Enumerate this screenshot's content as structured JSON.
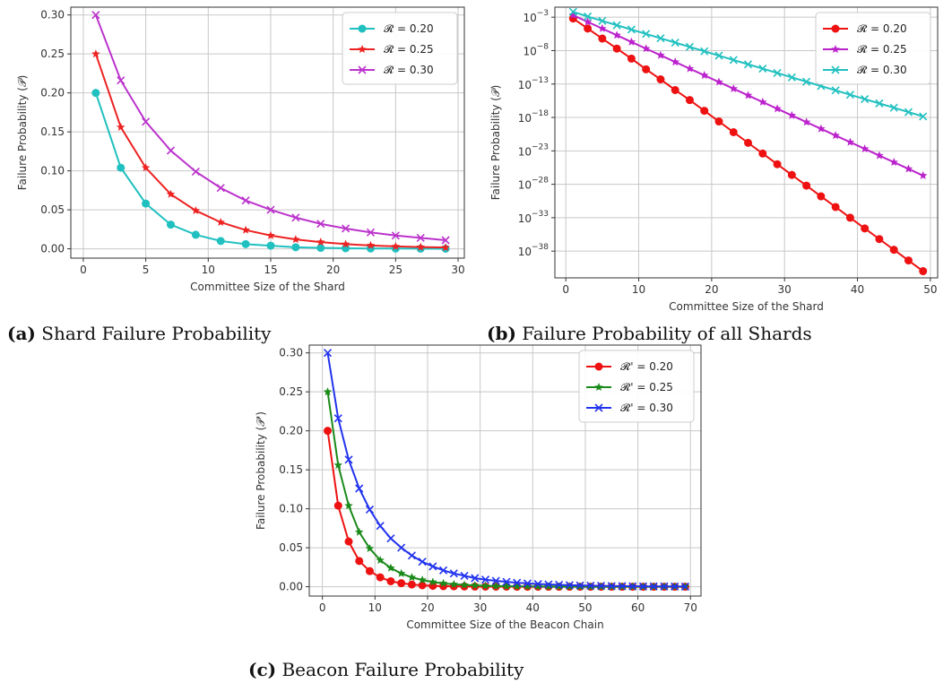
{
  "figures": [
    {
      "label": "(a)",
      "caption": "Shard Failure Probability"
    },
    {
      "label": "(b)",
      "caption": "Failure Probability of all Shards"
    },
    {
      "label": "(c)",
      "caption": "Beacon Failure Probability"
    }
  ],
  "chart_data": [
    {
      "type": "line",
      "title": "",
      "xlabel": "Committee Size of the Shard",
      "ylabel": "Failure Probability (𝒫)",
      "xlim": [
        -1,
        30.5
      ],
      "ylim": [
        -0.012,
        0.31
      ],
      "xticks": [
        0,
        5,
        10,
        15,
        20,
        25,
        30
      ],
      "yticks": [
        0.0,
        0.05,
        0.1,
        0.15,
        0.2,
        0.25,
        0.3
      ],
      "ytick_labels": [
        "0.00",
        "0.05",
        "0.10",
        "0.15",
        "0.20",
        "0.25",
        "0.30"
      ],
      "grid": true,
      "legend_position": "top-right",
      "x": [
        1,
        3,
        5,
        7,
        9,
        11,
        13,
        15,
        17,
        19,
        21,
        23,
        25,
        27,
        29
      ],
      "series": [
        {
          "name": "𝓡 = 0.20",
          "color": "#20c0c0",
          "marker": "circle",
          "values": [
            0.2,
            0.104,
            0.058,
            0.031,
            0.018,
            0.01,
            0.006,
            0.004,
            0.002,
            0.0012,
            0.0007,
            0.0004,
            0.0003,
            0.0002,
            0.0001
          ]
        },
        {
          "name": "𝓡 = 0.25",
          "color": "#ee2222",
          "marker": "star",
          "values": [
            0.25,
            0.156,
            0.104,
            0.07,
            0.049,
            0.034,
            0.024,
            0.017,
            0.012,
            0.0086,
            0.006,
            0.0043,
            0.0031,
            0.0022,
            0.0016
          ]
        },
        {
          "name": "𝓡 = 0.30",
          "color": "#bb33cc",
          "marker": "x",
          "values": [
            0.3,
            0.216,
            0.163,
            0.126,
            0.099,
            0.078,
            0.062,
            0.05,
            0.04,
            0.032,
            0.026,
            0.021,
            0.017,
            0.014,
            0.011
          ]
        }
      ]
    },
    {
      "type": "line",
      "title": "",
      "xlabel": "Committee Size of the Shard",
      "ylabel": "Failure Probability (𝒫)",
      "yscale": "log",
      "xlim": [
        -1.5,
        51
      ],
      "ylim_exponent": [
        -42,
        -1.5
      ],
      "xticks": [
        0,
        10,
        20,
        30,
        40,
        50
      ],
      "ytick_exponents": [
        -3,
        -8,
        -13,
        -18,
        -23,
        -28,
        -33,
        -38
      ],
      "ytick_base": "10",
      "grid": true,
      "legend_position": "top-right",
      "x": [
        1,
        3,
        5,
        7,
        9,
        11,
        13,
        15,
        17,
        19,
        21,
        23,
        25,
        27,
        29,
        31,
        33,
        35,
        37,
        39,
        41,
        43,
        45,
        47,
        49
      ],
      "series": [
        {
          "name": "𝓡 = 0.20",
          "color": "#ee1111",
          "marker": "circle",
          "exponents": [
            -3.2,
            -4.7,
            -6.2,
            -7.7,
            -9.2,
            -10.8,
            -12.3,
            -13.9,
            -15.4,
            -17.0,
            -18.6,
            -20.2,
            -21.8,
            -23.4,
            -25.0,
            -26.6,
            -28.2,
            -29.8,
            -31.4,
            -33.0,
            -34.6,
            -36.2,
            -37.8,
            -39.4,
            -41.0
          ]
        },
        {
          "name": "𝓡 = 0.25",
          "color": "#bb22cc",
          "marker": "star",
          "exponents": [
            -2.7,
            -3.7,
            -4.7,
            -5.7,
            -6.7,
            -7.7,
            -8.7,
            -9.7,
            -10.7,
            -11.7,
            -12.7,
            -13.7,
            -14.7,
            -15.7,
            -16.7,
            -17.7,
            -18.7,
            -19.7,
            -20.7,
            -21.7,
            -22.7,
            -23.7,
            -24.7,
            -25.7,
            -26.7
          ]
        },
        {
          "name": "𝓡 = 0.30",
          "color": "#22c0c0",
          "marker": "x",
          "exponents": [
            -2.2,
            -2.9,
            -3.55,
            -4.2,
            -4.85,
            -5.5,
            -6.15,
            -6.8,
            -7.45,
            -8.1,
            -8.75,
            -9.4,
            -10.05,
            -10.7,
            -11.35,
            -12.0,
            -12.65,
            -13.3,
            -13.95,
            -14.6,
            -15.25,
            -15.9,
            -16.55,
            -17.2,
            -17.85
          ]
        }
      ]
    },
    {
      "type": "line",
      "title": "",
      "xlabel": "Committee Size of the Beacon Chain",
      "ylabel": "Failure Probability (𝒫')",
      "xlim": [
        -2.5,
        72
      ],
      "ylim": [
        -0.012,
        0.31
      ],
      "xticks": [
        0,
        10,
        20,
        30,
        40,
        50,
        60,
        70
      ],
      "yticks": [
        0.0,
        0.05,
        0.1,
        0.15,
        0.2,
        0.25,
        0.3
      ],
      "ytick_labels": [
        "0.00",
        "0.05",
        "0.10",
        "0.15",
        "0.20",
        "0.25",
        "0.30"
      ],
      "grid": true,
      "legend_position": "top-right",
      "x": [
        1,
        3,
        5,
        7,
        9,
        11,
        13,
        15,
        17,
        19,
        21,
        23,
        25,
        27,
        29,
        31,
        33,
        35,
        37,
        39,
        41,
        43,
        45,
        47,
        49,
        51,
        53,
        55,
        57,
        59,
        61,
        63,
        65,
        67,
        69
      ],
      "series": [
        {
          "name": "𝓡' = 0.20",
          "color": "#ee1111",
          "marker": "circle",
          "values": [
            0.2,
            0.104,
            0.058,
            0.033,
            0.02,
            0.012,
            0.007,
            0.0045,
            0.0028,
            0.0018,
            0.0011,
            0.0007,
            0.0005,
            0.0003,
            0.0002,
            0.0001,
            0.0001,
            0.0001,
            0,
            0,
            0,
            0,
            0,
            0,
            0,
            0,
            0,
            0,
            0,
            0,
            0,
            0,
            0,
            0,
            0
          ]
        },
        {
          "name": "𝓡' = 0.25",
          "color": "#1a8a1a",
          "marker": "star",
          "values": [
            0.25,
            0.156,
            0.104,
            0.07,
            0.049,
            0.034,
            0.024,
            0.017,
            0.012,
            0.0086,
            0.006,
            0.0043,
            0.0031,
            0.0022,
            0.0016,
            0.0011,
            0.0008,
            0.0006,
            0.0004,
            0.0003,
            0.0002,
            0.0002,
            0.0001,
            0.0001,
            0.0001,
            0,
            0,
            0,
            0,
            0,
            0,
            0,
            0,
            0,
            0
          ]
        },
        {
          "name": "𝓡' = 0.30",
          "color": "#2233ee",
          "marker": "x",
          "values": [
            0.3,
            0.216,
            0.163,
            0.126,
            0.099,
            0.078,
            0.062,
            0.05,
            0.04,
            0.032,
            0.026,
            0.021,
            0.017,
            0.014,
            0.011,
            0.009,
            0.0075,
            0.0062,
            0.0051,
            0.0042,
            0.0035,
            0.0029,
            0.0024,
            0.002,
            0.0016,
            0.0013,
            0.0011,
            0.0009,
            0.0008,
            0.0006,
            0.0005,
            0.0004,
            0.0004,
            0.0003,
            0.0002
          ]
        }
      ]
    }
  ]
}
